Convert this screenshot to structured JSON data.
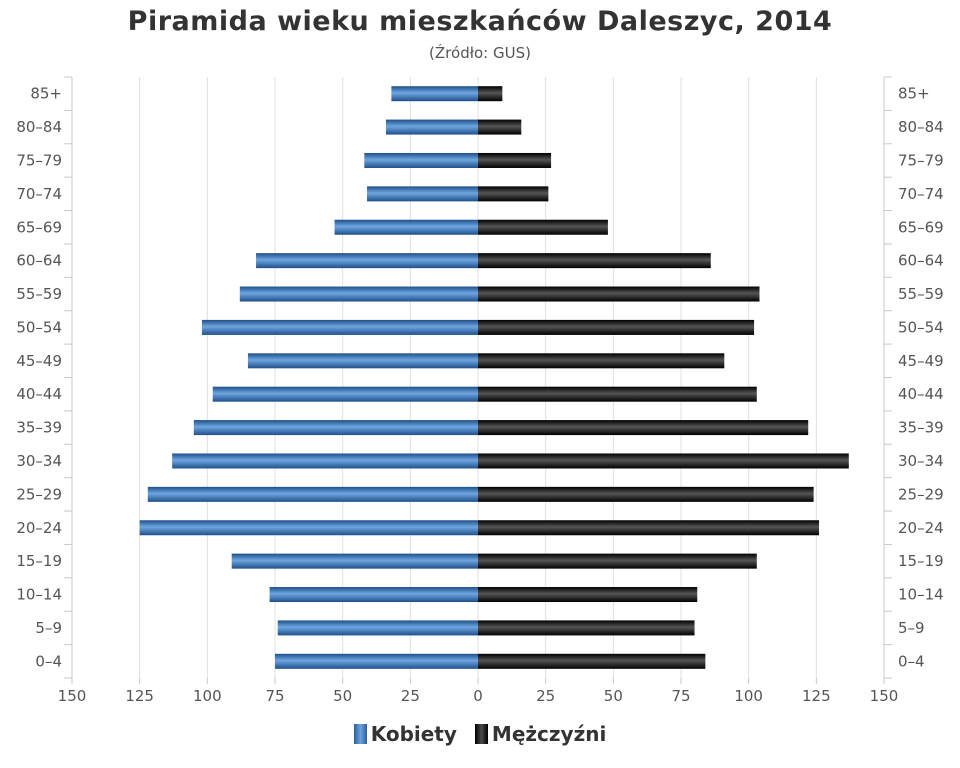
{
  "chart_data": {
    "type": "bar",
    "orientation": "horizontal-population-pyramid",
    "title": "Piramida wieku mieszkańców Daleszyc, 2014",
    "subtitle": "(Źródło: GUS)",
    "categories": [
      "85+",
      "80–84",
      "75–79",
      "70–74",
      "65–69",
      "60–64",
      "55–59",
      "50–54",
      "45–49",
      "40–44",
      "35–39",
      "30–34",
      "25–29",
      "20–24",
      "15–19",
      "10–14",
      "5–9",
      "0–4"
    ],
    "series": [
      {
        "name": "Kobiety",
        "color": "#3d7ac4",
        "values": [
          32,
          34,
          42,
          41,
          53,
          82,
          88,
          102,
          85,
          98,
          105,
          113,
          122,
          125,
          91,
          77,
          74,
          75
        ]
      },
      {
        "name": "Mężczyźni",
        "color": "#1a1a1a",
        "values": [
          9,
          16,
          27,
          26,
          48,
          86,
          104,
          102,
          91,
          103,
          122,
          137,
          124,
          126,
          103,
          81,
          80,
          84
        ]
      }
    ],
    "xticks": [
      "150",
      "125",
      "100",
      "75",
      "50",
      "25",
      "0",
      "25",
      "50",
      "75",
      "100",
      "125",
      "150"
    ],
    "xlim": [
      -150,
      150
    ],
    "grid": true,
    "legend_position": "bottom-center"
  }
}
